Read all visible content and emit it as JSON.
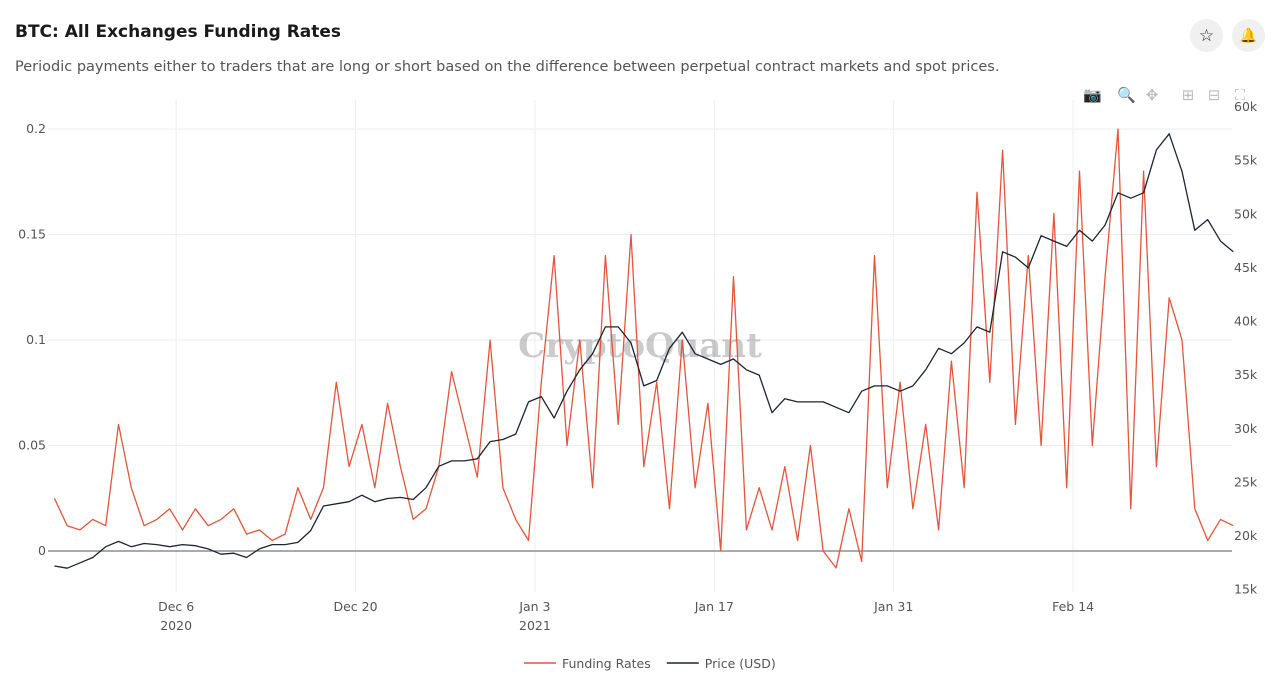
{
  "header": {
    "title": "BTC: All Exchanges Funding Rates",
    "subtitle": "Periodic payments either to traders that are long or short based on the difference between perpetual contract markets and spot prices."
  },
  "icons": {
    "favorite": "star-icon",
    "alert": "bell-icon",
    "toolbar": [
      "camera-icon",
      "zoom-icon",
      "pan-icon",
      "zoom-in-icon",
      "zoom-out-icon",
      "autoscale-icon"
    ]
  },
  "watermark": "CryptoQuant",
  "chart_data": {
    "type": "line",
    "x_range": [
      "2020-11-26",
      "2021-02-26"
    ],
    "x_ticks": [
      {
        "date": "2020-12-06",
        "label": "Dec 6",
        "sub": "2020"
      },
      {
        "date": "2020-12-20",
        "label": "Dec 20",
        "sub": ""
      },
      {
        "date": "2021-01-03",
        "label": "Jan 3",
        "sub": "2021"
      },
      {
        "date": "2021-01-17",
        "label": "Jan 17",
        "sub": ""
      },
      {
        "date": "2021-01-31",
        "label": "Jan 31",
        "sub": ""
      },
      {
        "date": "2021-02-14",
        "label": "Feb 14",
        "sub": ""
      }
    ],
    "y_left": {
      "range": [
        -0.02,
        0.21
      ],
      "ticks": [
        0,
        0.05,
        0.1,
        0.15,
        0.2
      ],
      "tick_labels": [
        "0",
        "0.05",
        "0.1",
        "0.15",
        "0.2"
      ]
    },
    "y_right": {
      "range": [
        15000,
        60000
      ],
      "ticks": [
        15000,
        20000,
        25000,
        30000,
        35000,
        40000,
        45000,
        50000,
        55000,
        60000
      ],
      "tick_labels": [
        "15k",
        "20k",
        "25k",
        "30k",
        "35k",
        "40k",
        "45k",
        "50k",
        "55k",
        "60k"
      ]
    },
    "grid": true,
    "legend_position": "bottom-center",
    "start_date": "2020-11-26",
    "series": [
      {
        "name": "Funding Rates",
        "axis": "left",
        "color": "#e5553a",
        "values": [
          0.025,
          0.012,
          0.01,
          0.015,
          0.012,
          0.06,
          0.03,
          0.012,
          0.015,
          0.02,
          0.01,
          0.02,
          0.012,
          0.015,
          0.02,
          0.008,
          0.01,
          0.005,
          0.008,
          0.03,
          0.015,
          0.03,
          0.08,
          0.04,
          0.06,
          0.03,
          0.07,
          0.04,
          0.015,
          0.02,
          0.04,
          0.085,
          0.06,
          0.035,
          0.1,
          0.03,
          0.015,
          0.005,
          0.08,
          0.14,
          0.05,
          0.1,
          0.03,
          0.14,
          0.06,
          0.15,
          0.04,
          0.08,
          0.02,
          0.1,
          0.03,
          0.07,
          0.0,
          0.13,
          0.01,
          0.03,
          0.01,
          0.04,
          0.005,
          0.05,
          0.0,
          -0.008,
          0.02,
          -0.005,
          0.14,
          0.03,
          0.08,
          0.02,
          0.06,
          0.01,
          0.09,
          0.03,
          0.17,
          0.08,
          0.19,
          0.06,
          0.14,
          0.05,
          0.16,
          0.03,
          0.18,
          0.05,
          0.13,
          0.2,
          0.02,
          0.18,
          0.04,
          0.12,
          0.1,
          0.02,
          0.005,
          0.015,
          0.012
        ]
      },
      {
        "name": "Price (USD)",
        "axis": "right",
        "color": "#1c2530",
        "values": [
          17200,
          17000,
          17500,
          18000,
          19000,
          19500,
          19000,
          19300,
          19200,
          19000,
          19200,
          19100,
          18800,
          18300,
          18400,
          18000,
          18800,
          19200,
          19200,
          19400,
          20500,
          22800,
          23000,
          23200,
          23800,
          23200,
          23500,
          23600,
          23400,
          24500,
          26500,
          27000,
          27000,
          27200,
          28800,
          29000,
          29500,
          32500,
          33000,
          31000,
          33500,
          35500,
          37000,
          39500,
          39500,
          38000,
          34000,
          34500,
          37500,
          39000,
          37000,
          36500,
          36000,
          36500,
          35500,
          35000,
          31500,
          32800,
          32500,
          32500,
          32500,
          32000,
          31500,
          33500,
          34000,
          34000,
          33500,
          34000,
          35500,
          37500,
          37000,
          38000,
          39500,
          39000,
          46500,
          46000,
          45000,
          48000,
          47500,
          47000,
          48500,
          47500,
          49000,
          52000,
          51500,
          52000,
          56000,
          57500,
          54000,
          48500,
          49500,
          47500,
          46500
        ]
      }
    ]
  }
}
